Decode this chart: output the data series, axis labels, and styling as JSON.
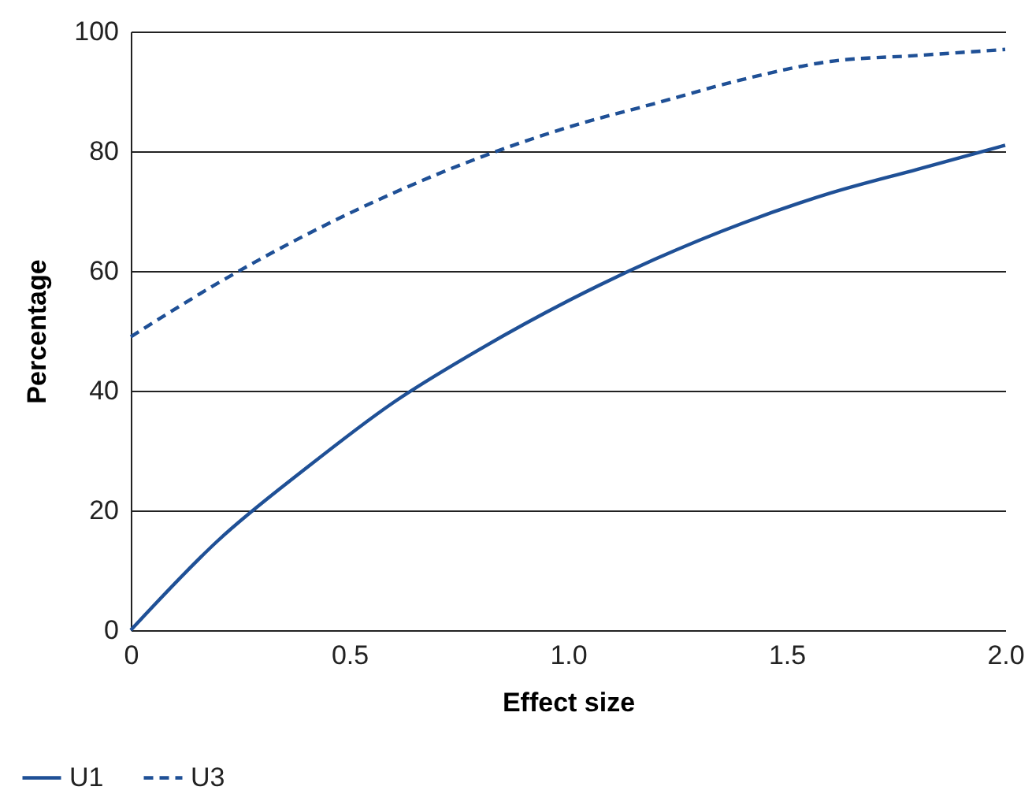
{
  "chart_data": {
    "type": "line",
    "xlabel": "Effect size",
    "ylabel": "Percentage",
    "x": [
      0,
      0.2,
      0.4,
      0.6,
      0.8,
      1.0,
      1.2,
      1.4,
      1.6,
      1.8,
      2.0
    ],
    "series": [
      {
        "name": "U1",
        "color": "#1f5096",
        "line_style": "solid",
        "values": [
          0,
          15,
          27,
          38,
          47,
          55,
          62,
          68,
          73,
          77,
          81
        ]
      },
      {
        "name": "U3",
        "color": "#1f5096",
        "line_style": "dashed",
        "values": [
          49,
          58,
          66,
          73,
          79,
          84,
          88,
          92,
          95,
          96,
          97
        ]
      }
    ],
    "xlim": [
      0,
      2.0
    ],
    "xticks": [
      {
        "value": 0,
        "label": "0"
      },
      {
        "value": 0.5,
        "label": "0.5"
      },
      {
        "value": 1.0,
        "label": "1.0"
      },
      {
        "value": 1.5,
        "label": "1.5"
      },
      {
        "value": 2.0,
        "label": "2.0"
      }
    ],
    "ylim": [
      0,
      100
    ],
    "yticks": [
      0,
      20,
      40,
      60,
      80,
      100
    ],
    "grid": "y",
    "legend": "bottom left",
    "marker": "none"
  }
}
